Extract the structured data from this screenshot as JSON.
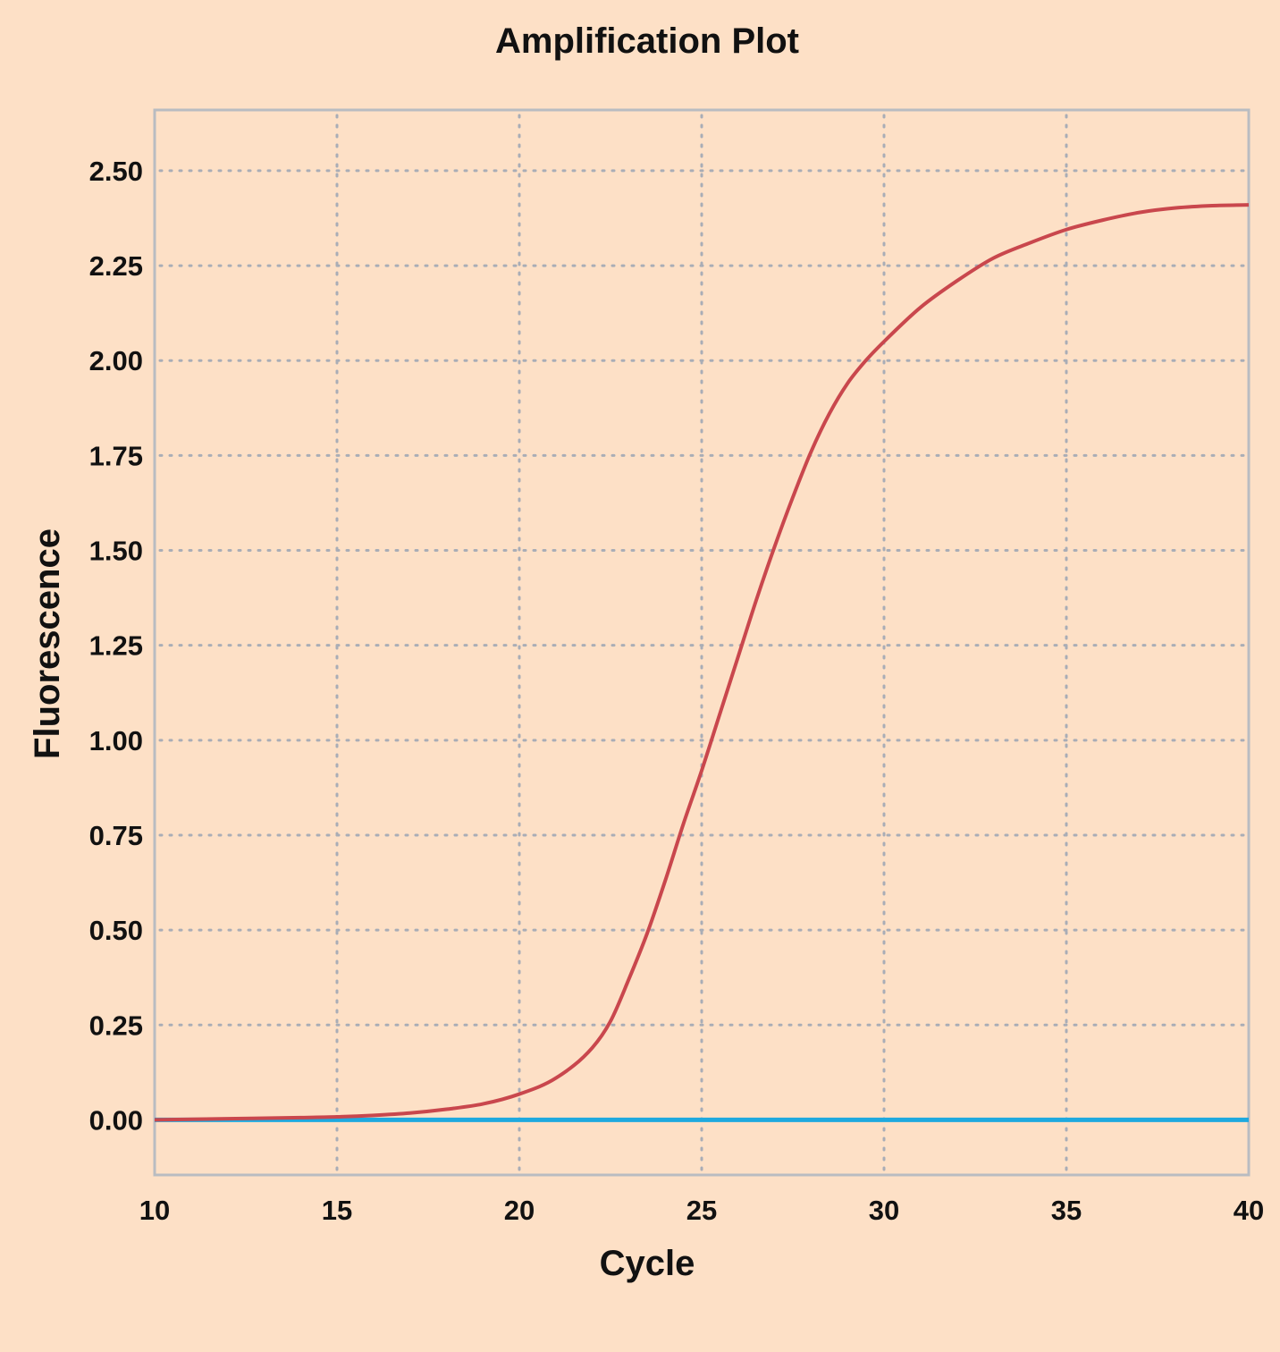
{
  "chart_data": {
    "type": "line",
    "title": "Amplification Plot",
    "xlabel": "Cycle",
    "ylabel": "Fluorescence",
    "xlim": [
      10,
      40
    ],
    "ylim": [
      -0.145,
      2.66
    ],
    "grid": true,
    "x_ticks": [
      "10",
      "15",
      "20",
      "25",
      "30",
      "35",
      "40"
    ],
    "y_ticks": [
      "0.00",
      "0.25",
      "0.50",
      "0.75",
      "1.00",
      "1.25",
      "1.50",
      "1.75",
      "2.00",
      "2.25",
      "2.50"
    ],
    "series": [
      {
        "color": "#c9474d",
        "x": [
          10,
          12,
          14,
          15,
          16,
          17,
          18,
          19,
          20,
          21,
          22,
          22.5,
          23,
          23.5,
          24,
          24.5,
          25,
          25.5,
          26,
          26.5,
          27,
          27.5,
          28,
          28.5,
          29,
          29.5,
          30,
          31,
          32,
          33,
          34,
          35,
          36,
          37,
          38,
          39,
          40
        ],
        "y": [
          0.0,
          0.003,
          0.006,
          0.008,
          0.012,
          0.018,
          0.028,
          0.042,
          0.068,
          0.11,
          0.19,
          0.26,
          0.37,
          0.49,
          0.63,
          0.78,
          0.92,
          1.07,
          1.22,
          1.37,
          1.51,
          1.64,
          1.76,
          1.86,
          1.94,
          2.0,
          2.05,
          2.14,
          2.21,
          2.27,
          2.31,
          2.345,
          2.37,
          2.39,
          2.402,
          2.408,
          2.41
        ]
      },
      {
        "color": "#1ea9df",
        "x": [
          10,
          40
        ],
        "y": [
          0.0,
          0.0
        ]
      }
    ]
  }
}
